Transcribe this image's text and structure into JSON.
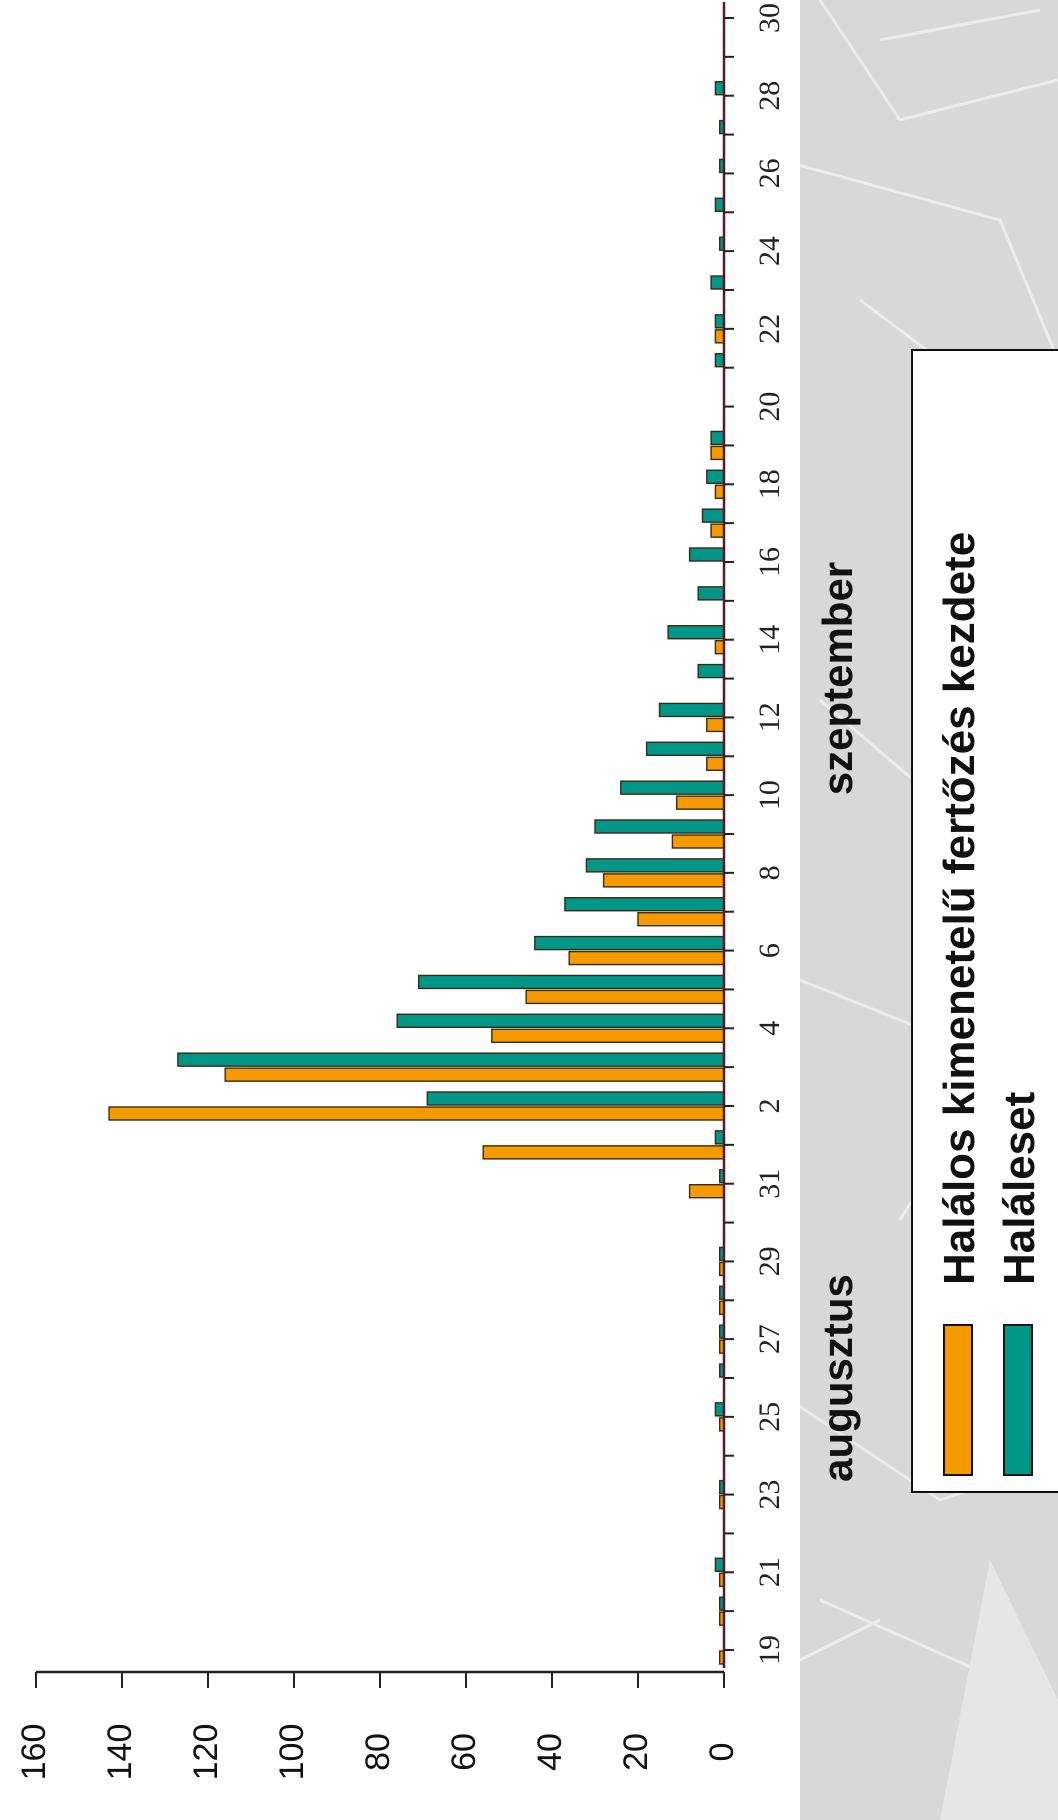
{
  "chart_data": {
    "type": "bar",
    "orientation": "rotated-90",
    "categories": [
      "19",
      "20",
      "21",
      "22",
      "23",
      "24",
      "25",
      "26",
      "27",
      "28",
      "29",
      "30",
      "31",
      "1",
      "2",
      "3",
      "4",
      "5",
      "6",
      "7",
      "8",
      "9",
      "10",
      "11",
      "12",
      "13",
      "14",
      "15",
      "16",
      "17",
      "18",
      "19",
      "20",
      "21",
      "22",
      "23",
      "24",
      "25",
      "26",
      "27",
      "28",
      "29",
      "30"
    ],
    "tick_labels": [
      "19",
      "21",
      "23",
      "25",
      "27",
      "29",
      "31",
      "2",
      "4",
      "6",
      "8",
      "10",
      "12",
      "14",
      "16",
      "18",
      "20",
      "22",
      "24",
      "26",
      "28",
      "30"
    ],
    "month_labels": [
      {
        "text": "augusztus",
        "anchor_category_index": 7
      },
      {
        "text": "szeptember",
        "anchor_category_index": 25
      }
    ],
    "series": [
      {
        "name": "Halálos kimenetelű fertőzés kezdete",
        "color": "#f59b00",
        "values": [
          1,
          1,
          1,
          0,
          1,
          0,
          1,
          0,
          1,
          1,
          1,
          0,
          8,
          56,
          143,
          116,
          54,
          46,
          36,
          20,
          28,
          12,
          11,
          4,
          4,
          0,
          2,
          0,
          0,
          3,
          2,
          3,
          0,
          0,
          2,
          0,
          0,
          0,
          0,
          0,
          0,
          0,
          0
        ]
      },
      {
        "name": "Haláleset",
        "color": "#009688",
        "values": [
          0,
          1,
          2,
          0,
          1,
          0,
          2,
          1,
          1,
          1,
          1,
          0,
          1,
          2,
          69,
          127,
          76,
          71,
          44,
          37,
          32,
          30,
          24,
          18,
          15,
          6,
          13,
          6,
          8,
          5,
          4,
          3,
          0,
          2,
          2,
          3,
          1,
          2,
          1,
          1,
          2,
          0,
          0
        ]
      }
    ],
    "ylim": [
      0,
      160
    ],
    "yticks": [
      "0",
      "20",
      "40",
      "60",
      "80",
      "100",
      "120",
      "140",
      "160"
    ],
    "legend": {
      "placement": "bottom-right",
      "entries": [
        "Halálos kimenetelű fertőzés kezdete",
        "Haláleset"
      ]
    },
    "grid": false,
    "colors": {
      "plot_background": "#ffffff",
      "axis_line": "#5a1a2e",
      "page_background": "#d9d9d9"
    }
  }
}
